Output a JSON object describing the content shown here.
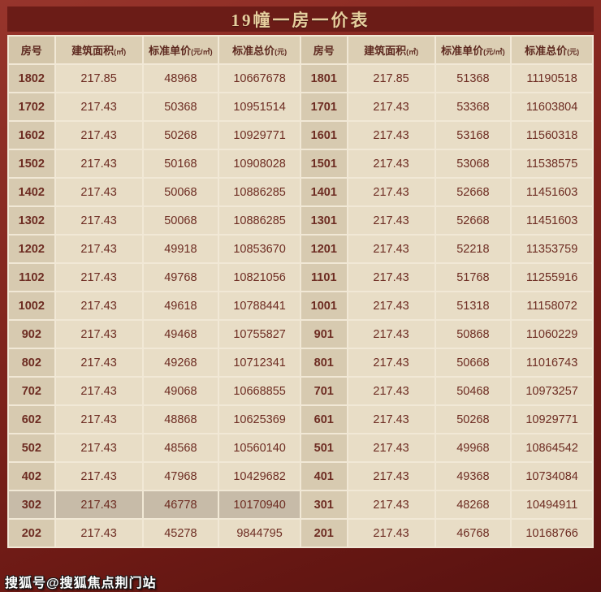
{
  "title": "19幢一房一价表",
  "table": {
    "columns": [
      {
        "label": "房号",
        "unit": ""
      },
      {
        "label": "建筑面积",
        "unit": "(㎡)"
      },
      {
        "label": "标准单价",
        "unit": "(元/㎡)"
      },
      {
        "label": "标准总价",
        "unit": "(元)"
      }
    ],
    "highlight_room": "302",
    "rows": [
      [
        "1802",
        "217.85",
        "48968",
        "10667678",
        "1801",
        "217.85",
        "51368",
        "11190518"
      ],
      [
        "1702",
        "217.43",
        "50368",
        "10951514",
        "1701",
        "217.43",
        "53368",
        "11603804"
      ],
      [
        "1602",
        "217.43",
        "50268",
        "10929771",
        "1601",
        "217.43",
        "53168",
        "11560318"
      ],
      [
        "1502",
        "217.43",
        "50168",
        "10908028",
        "1501",
        "217.43",
        "53068",
        "11538575"
      ],
      [
        "1402",
        "217.43",
        "50068",
        "10886285",
        "1401",
        "217.43",
        "52668",
        "11451603"
      ],
      [
        "1302",
        "217.43",
        "50068",
        "10886285",
        "1301",
        "217.43",
        "52668",
        "11451603"
      ],
      [
        "1202",
        "217.43",
        "49918",
        "10853670",
        "1201",
        "217.43",
        "52218",
        "11353759"
      ],
      [
        "1102",
        "217.43",
        "49768",
        "10821056",
        "1101",
        "217.43",
        "51768",
        "11255916"
      ],
      [
        "1002",
        "217.43",
        "49618",
        "10788441",
        "1001",
        "217.43",
        "51318",
        "11158072"
      ],
      [
        "902",
        "217.43",
        "49468",
        "10755827",
        "901",
        "217.43",
        "50868",
        "11060229"
      ],
      [
        "802",
        "217.43",
        "49268",
        "10712341",
        "801",
        "217.43",
        "50668",
        "11016743"
      ],
      [
        "702",
        "217.43",
        "49068",
        "10668855",
        "701",
        "217.43",
        "50468",
        "10973257"
      ],
      [
        "602",
        "217.43",
        "48868",
        "10625369",
        "601",
        "217.43",
        "50268",
        "10929771"
      ],
      [
        "502",
        "217.43",
        "48568",
        "10560140",
        "501",
        "217.43",
        "49968",
        "10864542"
      ],
      [
        "402",
        "217.43",
        "47968",
        "10429682",
        "401",
        "217.43",
        "49368",
        "10734084"
      ],
      [
        "302",
        "217.43",
        "46778",
        "10170940",
        "301",
        "217.43",
        "48268",
        "10494911"
      ],
      [
        "202",
        "217.43",
        "45278",
        "9844795",
        "201",
        "217.43",
        "46768",
        "10168766"
      ]
    ]
  },
  "watermark": "搜狐号@搜狐焦点荆门站"
}
